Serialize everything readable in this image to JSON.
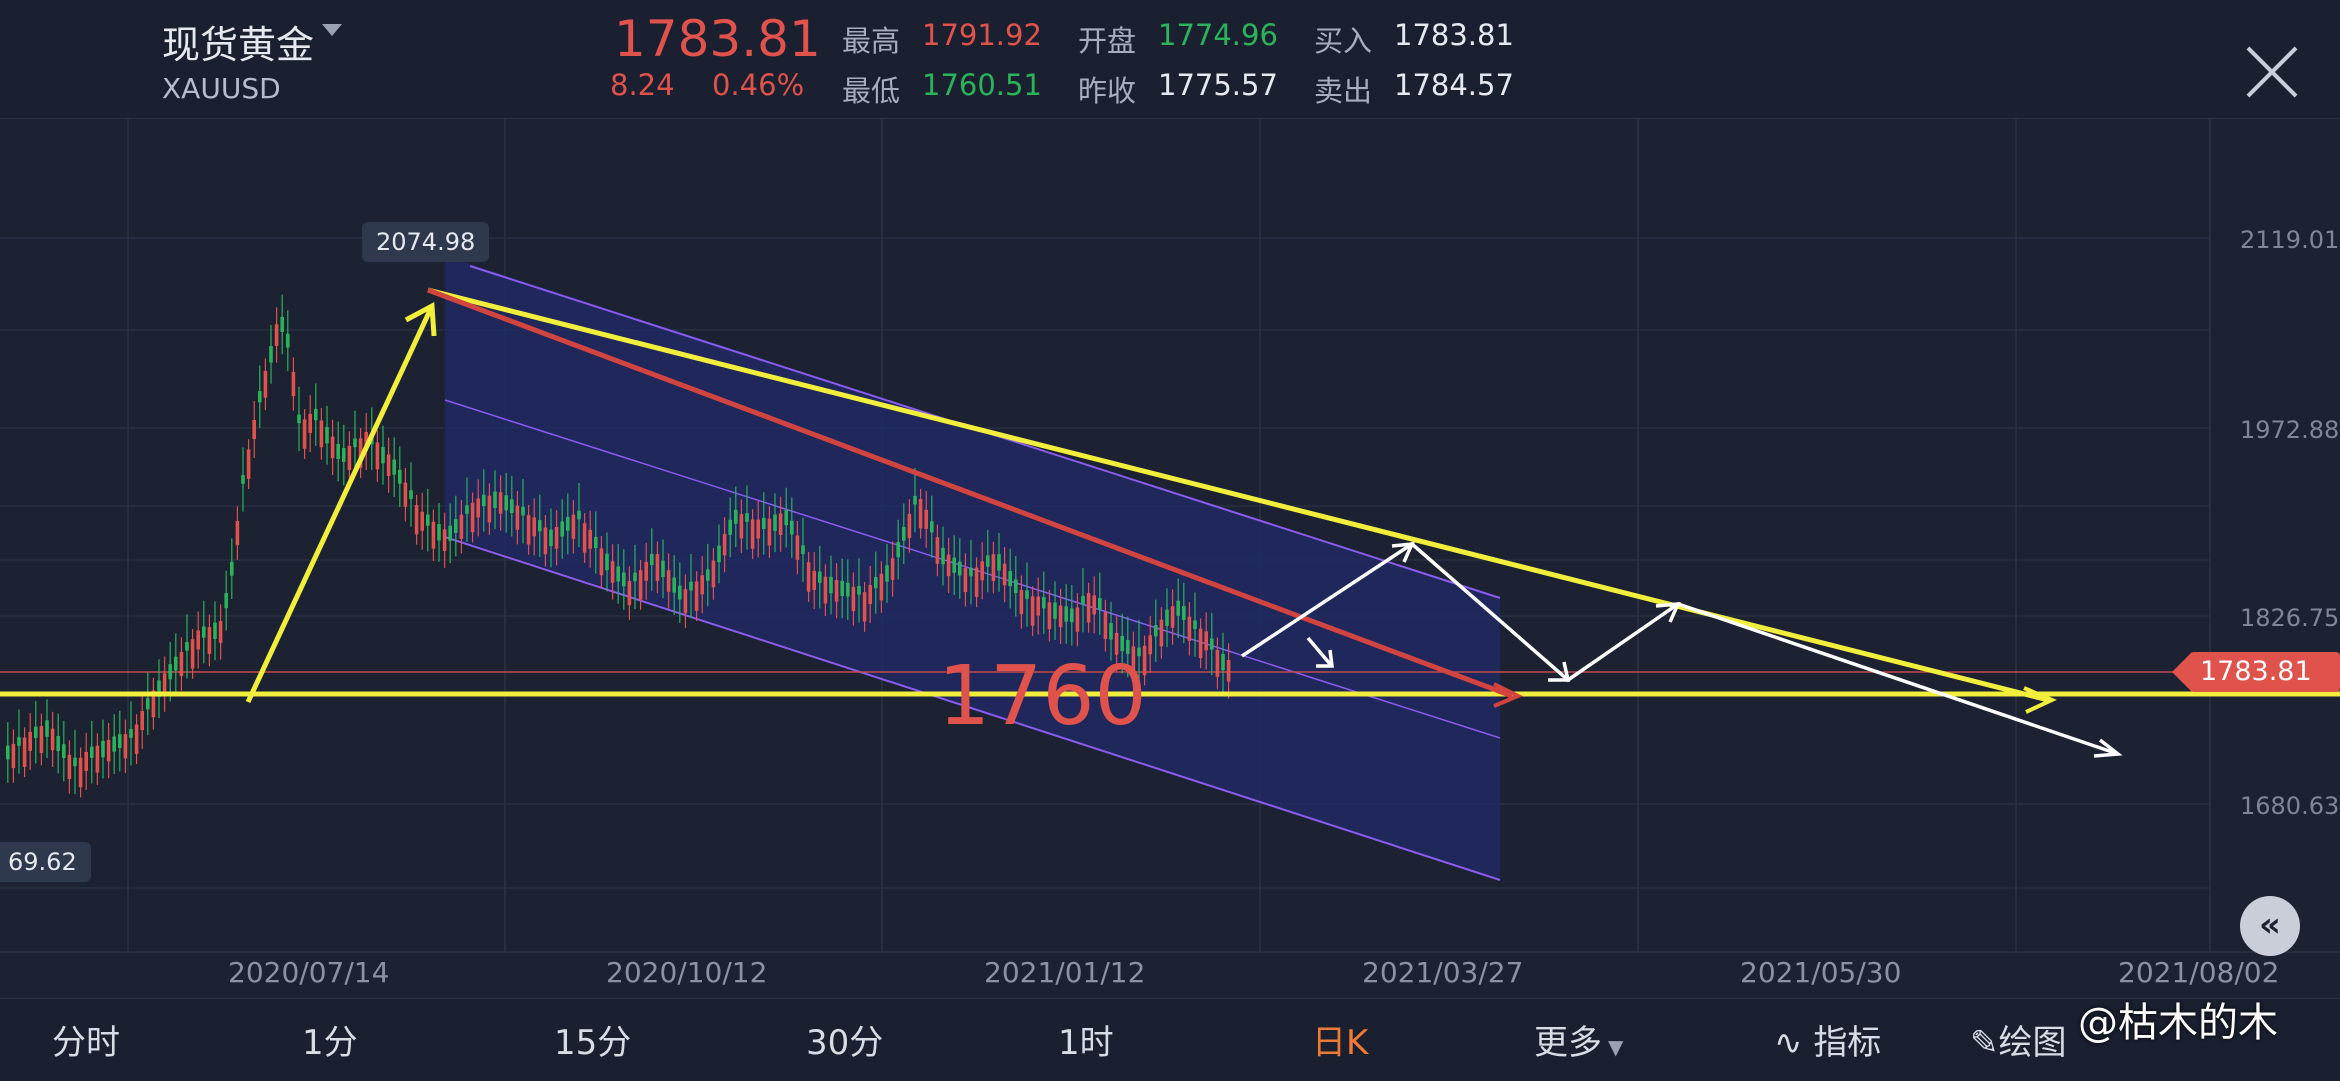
{
  "header": {
    "title": "现货黄金",
    "symbol": "XAUUSD",
    "price": "1783.81",
    "change": "8.24",
    "change_pct": "0.46%",
    "stats": {
      "high_label": "最高",
      "high": "1791.92",
      "low_label": "最低",
      "low": "1760.51",
      "open_label": "开盘",
      "open": "1774.96",
      "prev_close_label": "昨收",
      "prev_close": "1775.57",
      "buy_label": "买入",
      "buy": "1783.81",
      "sell_label": "卖出",
      "sell": "1784.57"
    }
  },
  "chart": {
    "y_ticks": [
      "2119.01",
      "1972.88",
      "1826.75",
      "1680.63"
    ],
    "x_ticks": [
      "2020/07/14",
      "2020/10/12",
      "2021/01/12",
      "2021/03/27",
      "2021/05/30",
      "2021/08/02"
    ],
    "current_price_tag": "1783.81",
    "high_tooltip": "2074.98",
    "low_tooltip": "69.62",
    "annotation": "1760"
  },
  "chart_data": {
    "type": "candlestick",
    "y_ticks": [
      2119.01,
      1972.88,
      1826.75,
      1680.63
    ],
    "x_ticks": [
      "2020/07/14",
      "2020/10/12",
      "2021/01/12",
      "2021/03/27",
      "2021/05/30",
      "2021/08/02"
    ],
    "current_price": 1783.81,
    "high_marker": 2074.98,
    "annotation_level": 1760
  },
  "toolbar": {
    "tabs": [
      "分时",
      "1分",
      "15分",
      "30分",
      "1时",
      "日K",
      "更多",
      "指标",
      "绘图"
    ],
    "active": "日K"
  },
  "watermark": "@枯木的木",
  "colors": {
    "up": "#e0524c",
    "down": "#2bb35b",
    "accent": "#f07a34",
    "background": "#1c2231"
  }
}
